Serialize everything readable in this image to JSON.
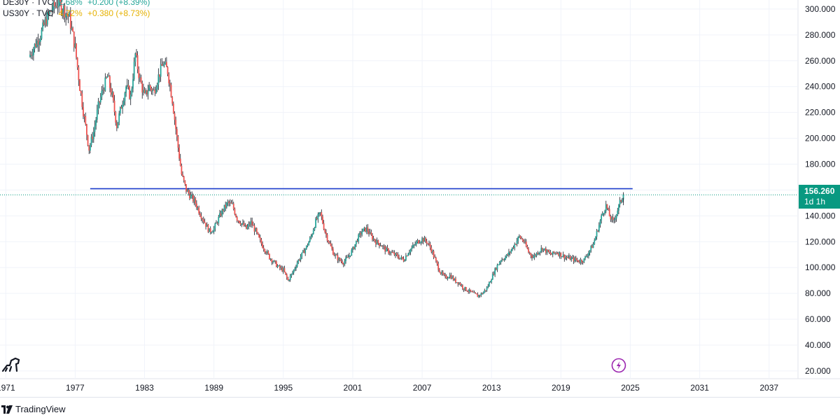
{
  "legend": [
    {
      "symbol": "DE30Y · TVC",
      "value": "2.68%",
      "change": "+0.200 (+8.39%)",
      "color": "#26a69a"
    },
    {
      "symbol": "US30Y · TVC",
      "value": "4.72%",
      "change": "+0.380 (+8.73%)",
      "color": "#e5b100"
    }
  ],
  "badge": {
    "price": "156.260",
    "timeframe": "1d 1h",
    "color": "#089981"
  },
  "footer": {
    "brand": "TradingView"
  },
  "colors": {
    "up": "#26a69a",
    "down": "#ef5350",
    "wick": "#131722",
    "resistance": "#1e3fcc",
    "flash": "#9c27b0"
  },
  "chart_data": {
    "type": "candlestick",
    "title": "",
    "xlabel": "",
    "ylabel": "",
    "x_ticks": [
      "1971",
      "1977",
      "1983",
      "1989",
      "1995",
      "2001",
      "2007",
      "2013",
      "2019",
      "2025",
      "2031",
      "2037"
    ],
    "y_ticks": [
      "20.000",
      "40.000",
      "60.000",
      "80.000",
      "100.000",
      "120.000",
      "140.000",
      "160.000",
      "180.000",
      "200.000",
      "220.000",
      "240.000",
      "260.000",
      "280.000",
      "300.000"
    ],
    "xlim": [
      1970.5,
      2039.5
    ],
    "ylim": [
      14,
      307
    ],
    "last_price": 156.26,
    "resistance_level": 161,
    "resistance_start": 1978.3,
    "series": [
      {
        "name": "US30Y / DE30Y",
        "points": [
          [
            1973.0,
            263
          ],
          [
            1973.4,
            270
          ],
          [
            1974.0,
            280
          ],
          [
            1974.5,
            292
          ],
          [
            1975.0,
            300
          ],
          [
            1975.5,
            305
          ],
          [
            1976.0,
            300
          ],
          [
            1976.5,
            293
          ],
          [
            1977.0,
            270
          ],
          [
            1977.4,
            240
          ],
          [
            1977.8,
            215
          ],
          [
            1978.2,
            192
          ],
          [
            1978.6,
            205
          ],
          [
            1979.0,
            225
          ],
          [
            1979.4,
            238
          ],
          [
            1979.8,
            248
          ],
          [
            1980.2,
            232
          ],
          [
            1980.6,
            210
          ],
          [
            1981.0,
            225
          ],
          [
            1981.4,
            240
          ],
          [
            1981.8,
            232
          ],
          [
            1982.2,
            265
          ],
          [
            1982.6,
            245
          ],
          [
            1983.0,
            232
          ],
          [
            1983.4,
            240
          ],
          [
            1983.8,
            236
          ],
          [
            1984.2,
            248
          ],
          [
            1984.6,
            258
          ],
          [
            1985.0,
            252
          ],
          [
            1985.4,
            230
          ],
          [
            1985.8,
            200
          ],
          [
            1986.2,
            172
          ],
          [
            1986.6,
            160
          ],
          [
            1987.0,
            155
          ],
          [
            1987.4,
            150
          ],
          [
            1987.8,
            142
          ],
          [
            1988.2,
            135
          ],
          [
            1988.6,
            128
          ],
          [
            1989.0,
            130
          ],
          [
            1989.4,
            138
          ],
          [
            1989.8,
            145
          ],
          [
            1990.2,
            150
          ],
          [
            1990.6,
            148
          ],
          [
            1991.0,
            138
          ],
          [
            1991.4,
            134
          ],
          [
            1991.8,
            130
          ],
          [
            1992.2,
            135
          ],
          [
            1992.6,
            128
          ],
          [
            1993.0,
            120
          ],
          [
            1993.4,
            114
          ],
          [
            1993.8,
            108
          ],
          [
            1994.2,
            104
          ],
          [
            1994.6,
            100
          ],
          [
            1995.0,
            98
          ],
          [
            1995.4,
            90
          ],
          [
            1995.8,
            96
          ],
          [
            1996.2,
            104
          ],
          [
            1996.6,
            110
          ],
          [
            1997.0,
            116
          ],
          [
            1997.4,
            124
          ],
          [
            1997.8,
            136
          ],
          [
            1998.2,
            142
          ],
          [
            1998.6,
            128
          ],
          [
            1999.0,
            118
          ],
          [
            1999.4,
            110
          ],
          [
            1999.8,
            106
          ],
          [
            2000.2,
            104
          ],
          [
            2000.6,
            108
          ],
          [
            2001.0,
            114
          ],
          [
            2001.4,
            122
          ],
          [
            2001.8,
            128
          ],
          [
            2002.2,
            130
          ],
          [
            2002.6,
            124
          ],
          [
            2003.0,
            120
          ],
          [
            2003.4,
            118
          ],
          [
            2003.8,
            114
          ],
          [
            2004.2,
            112
          ],
          [
            2004.6,
            110
          ],
          [
            2005.0,
            108
          ],
          [
            2005.4,
            106
          ],
          [
            2005.8,
            112
          ],
          [
            2006.2,
            116
          ],
          [
            2006.6,
            120
          ],
          [
            2007.0,
            122
          ],
          [
            2007.4,
            120
          ],
          [
            2007.8,
            114
          ],
          [
            2008.2,
            104
          ],
          [
            2008.6,
            96
          ],
          [
            2009.0,
            92
          ],
          [
            2009.4,
            94
          ],
          [
            2009.8,
            90
          ],
          [
            2010.2,
            88
          ],
          [
            2010.6,
            84
          ],
          [
            2011.0,
            82
          ],
          [
            2011.4,
            80
          ],
          [
            2011.8,
            78
          ],
          [
            2012.2,
            80
          ],
          [
            2012.6,
            84
          ],
          [
            2013.0,
            92
          ],
          [
            2013.4,
            100
          ],
          [
            2013.8,
            106
          ],
          [
            2014.2,
            108
          ],
          [
            2014.6,
            112
          ],
          [
            2015.0,
            118
          ],
          [
            2015.4,
            124
          ],
          [
            2015.8,
            120
          ],
          [
            2016.2,
            112
          ],
          [
            2016.6,
            108
          ],
          [
            2017.0,
            112
          ],
          [
            2017.4,
            115
          ],
          [
            2017.8,
            112
          ],
          [
            2018.2,
            110
          ],
          [
            2018.6,
            112
          ],
          [
            2019.0,
            110
          ],
          [
            2019.4,
            108
          ],
          [
            2019.8,
            107
          ],
          [
            2020.2,
            106
          ],
          [
            2020.6,
            105
          ],
          [
            2021.0,
            106
          ],
          [
            2021.4,
            112
          ],
          [
            2021.8,
            118
          ],
          [
            2022.2,
            130
          ],
          [
            2022.6,
            142
          ],
          [
            2022.9,
            148
          ],
          [
            2023.2,
            140
          ],
          [
            2023.5,
            135
          ],
          [
            2023.8,
            142
          ],
          [
            2024.1,
            150
          ],
          [
            2024.4,
            156.26
          ]
        ]
      }
    ]
  }
}
